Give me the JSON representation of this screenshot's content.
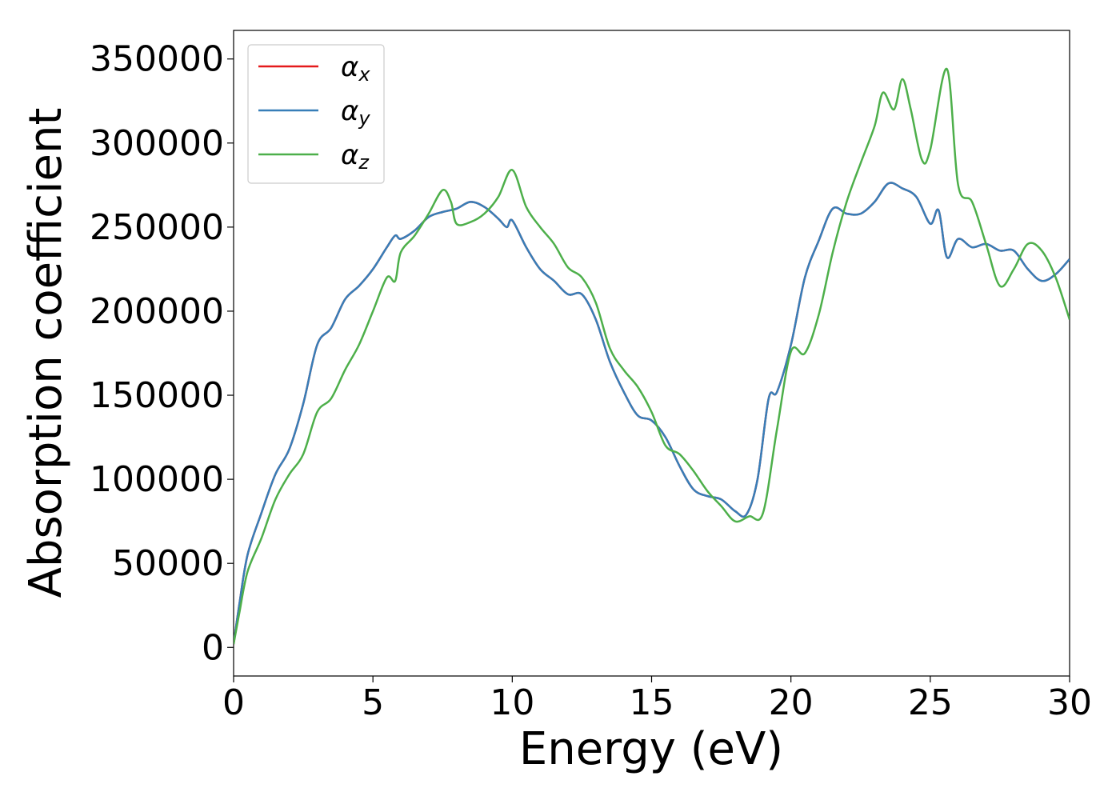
{
  "chart_data": {
    "type": "line",
    "xlabel": "Energy (eV)",
    "ylabel": "Absorption coefficient",
    "xlim": [
      0,
      30
    ],
    "ylim": [
      -17000,
      367000
    ],
    "xticks": [
      "0",
      "5",
      "10",
      "15",
      "20",
      "25",
      "30"
    ],
    "xtick_values": [
      0,
      5,
      10,
      15,
      20,
      25,
      30
    ],
    "yticks": [
      "0",
      "50000",
      "100000",
      "150000",
      "200000",
      "250000",
      "300000",
      "350000"
    ],
    "ytick_values": [
      0,
      50000,
      100000,
      150000,
      200000,
      250000,
      300000,
      350000
    ],
    "grid": false,
    "legend_position": "top-left",
    "series": [
      {
        "name": "α_x",
        "symbol": "α",
        "subscript": "x",
        "color": "#e41a1c",
        "x": [
          0,
          0.2,
          0.5,
          1.0,
          1.5,
          2.0,
          2.5,
          3.0,
          3.5,
          4.0,
          4.5,
          5.0,
          5.5,
          5.8,
          6.0,
          6.5,
          7.0,
          7.5,
          8.0,
          8.5,
          9.0,
          9.5,
          9.8,
          10.0,
          10.5,
          11.0,
          11.5,
          12.0,
          12.5,
          13.0,
          13.5,
          14.0,
          14.5,
          15.0,
          15.5,
          16.0,
          16.5,
          17.0,
          17.5,
          18.0,
          18.4,
          18.8,
          19.2,
          19.5,
          20.0,
          20.5,
          21.0,
          21.5,
          22.0,
          22.5,
          23.0,
          23.5,
          24.0,
          24.5,
          25.0,
          25.3,
          25.6,
          26.0,
          26.5,
          27.0,
          27.5,
          28.0,
          28.5,
          29.0,
          29.5,
          30.0
        ],
        "y": [
          2000,
          25000,
          55000,
          80000,
          103000,
          118000,
          145000,
          180000,
          190000,
          207000,
          215000,
          225000,
          238000,
          245000,
          243000,
          248000,
          256000,
          259000,
          261000,
          265000,
          262000,
          255000,
          250000,
          254000,
          238000,
          225000,
          218000,
          210000,
          210000,
          195000,
          170000,
          152000,
          138000,
          135000,
          125000,
          108000,
          94000,
          90000,
          88000,
          81000,
          79000,
          100000,
          148000,
          152000,
          180000,
          220000,
          242000,
          261000,
          258000,
          258000,
          265000,
          276000,
          273000,
          268000,
          252000,
          260000,
          232000,
          243000,
          238000,
          240000,
          236000,
          236000,
          225000,
          218000,
          222000,
          231000
        ]
      },
      {
        "name": "α_y",
        "symbol": "α",
        "subscript": "y",
        "color": "#377eb8",
        "x": [
          0,
          0.2,
          0.5,
          1.0,
          1.5,
          2.0,
          2.5,
          3.0,
          3.5,
          4.0,
          4.5,
          5.0,
          5.5,
          5.8,
          6.0,
          6.5,
          7.0,
          7.5,
          8.0,
          8.5,
          9.0,
          9.5,
          9.8,
          10.0,
          10.5,
          11.0,
          11.5,
          12.0,
          12.5,
          13.0,
          13.5,
          14.0,
          14.5,
          15.0,
          15.5,
          16.0,
          16.5,
          17.0,
          17.5,
          18.0,
          18.4,
          18.8,
          19.2,
          19.5,
          20.0,
          20.5,
          21.0,
          21.5,
          22.0,
          22.5,
          23.0,
          23.5,
          24.0,
          24.5,
          25.0,
          25.3,
          25.6,
          26.0,
          26.5,
          27.0,
          27.5,
          28.0,
          28.5,
          29.0,
          29.5,
          30.0
        ],
        "y": [
          2000,
          25000,
          55000,
          80000,
          103000,
          118000,
          145000,
          180000,
          190000,
          207000,
          215000,
          225000,
          238000,
          245000,
          243000,
          248000,
          256000,
          259000,
          261000,
          265000,
          262000,
          255000,
          250000,
          254000,
          238000,
          225000,
          218000,
          210000,
          210000,
          195000,
          170000,
          152000,
          138000,
          135000,
          125000,
          108000,
          94000,
          90000,
          88000,
          81000,
          79000,
          100000,
          148000,
          152000,
          180000,
          220000,
          242000,
          261000,
          258000,
          258000,
          265000,
          276000,
          273000,
          268000,
          252000,
          260000,
          232000,
          243000,
          238000,
          240000,
          236000,
          236000,
          225000,
          218000,
          222000,
          231000
        ]
      },
      {
        "name": "α_z",
        "symbol": "α",
        "subscript": "z",
        "color": "#4daf4a",
        "x": [
          0,
          0.2,
          0.5,
          1.0,
          1.5,
          2.0,
          2.5,
          3.0,
          3.5,
          4.0,
          4.5,
          5.0,
          5.5,
          5.8,
          6.0,
          6.5,
          7.0,
          7.5,
          7.8,
          8.0,
          8.5,
          9.0,
          9.5,
          10.0,
          10.5,
          11.0,
          11.5,
          12.0,
          12.5,
          13.0,
          13.5,
          14.0,
          14.5,
          15.0,
          15.5,
          16.0,
          16.5,
          17.0,
          17.5,
          18.0,
          18.5,
          19.0,
          19.5,
          20.0,
          20.5,
          21.0,
          21.5,
          22.0,
          22.5,
          23.0,
          23.3,
          23.7,
          24.0,
          24.3,
          24.7,
          25.0,
          25.6,
          26.0,
          26.5,
          27.0,
          27.5,
          28.0,
          28.5,
          29.0,
          29.5,
          30.0
        ],
        "y": [
          2000,
          20000,
          45000,
          65000,
          88000,
          103000,
          115000,
          140000,
          148000,
          165000,
          180000,
          200000,
          220000,
          218000,
          235000,
          245000,
          258000,
          272000,
          265000,
          252000,
          253000,
          258000,
          268000,
          284000,
          262000,
          250000,
          240000,
          226000,
          220000,
          205000,
          178000,
          165000,
          155000,
          140000,
          120000,
          115000,
          105000,
          93000,
          84000,
          75000,
          78000,
          80000,
          130000,
          176000,
          175000,
          198000,
          235000,
          265000,
          288000,
          310000,
          330000,
          320000,
          338000,
          320000,
          290000,
          296000,
          344000,
          275000,
          265000,
          240000,
          215000,
          225000,
          240000,
          236000,
          220000,
          195000
        ]
      }
    ]
  }
}
